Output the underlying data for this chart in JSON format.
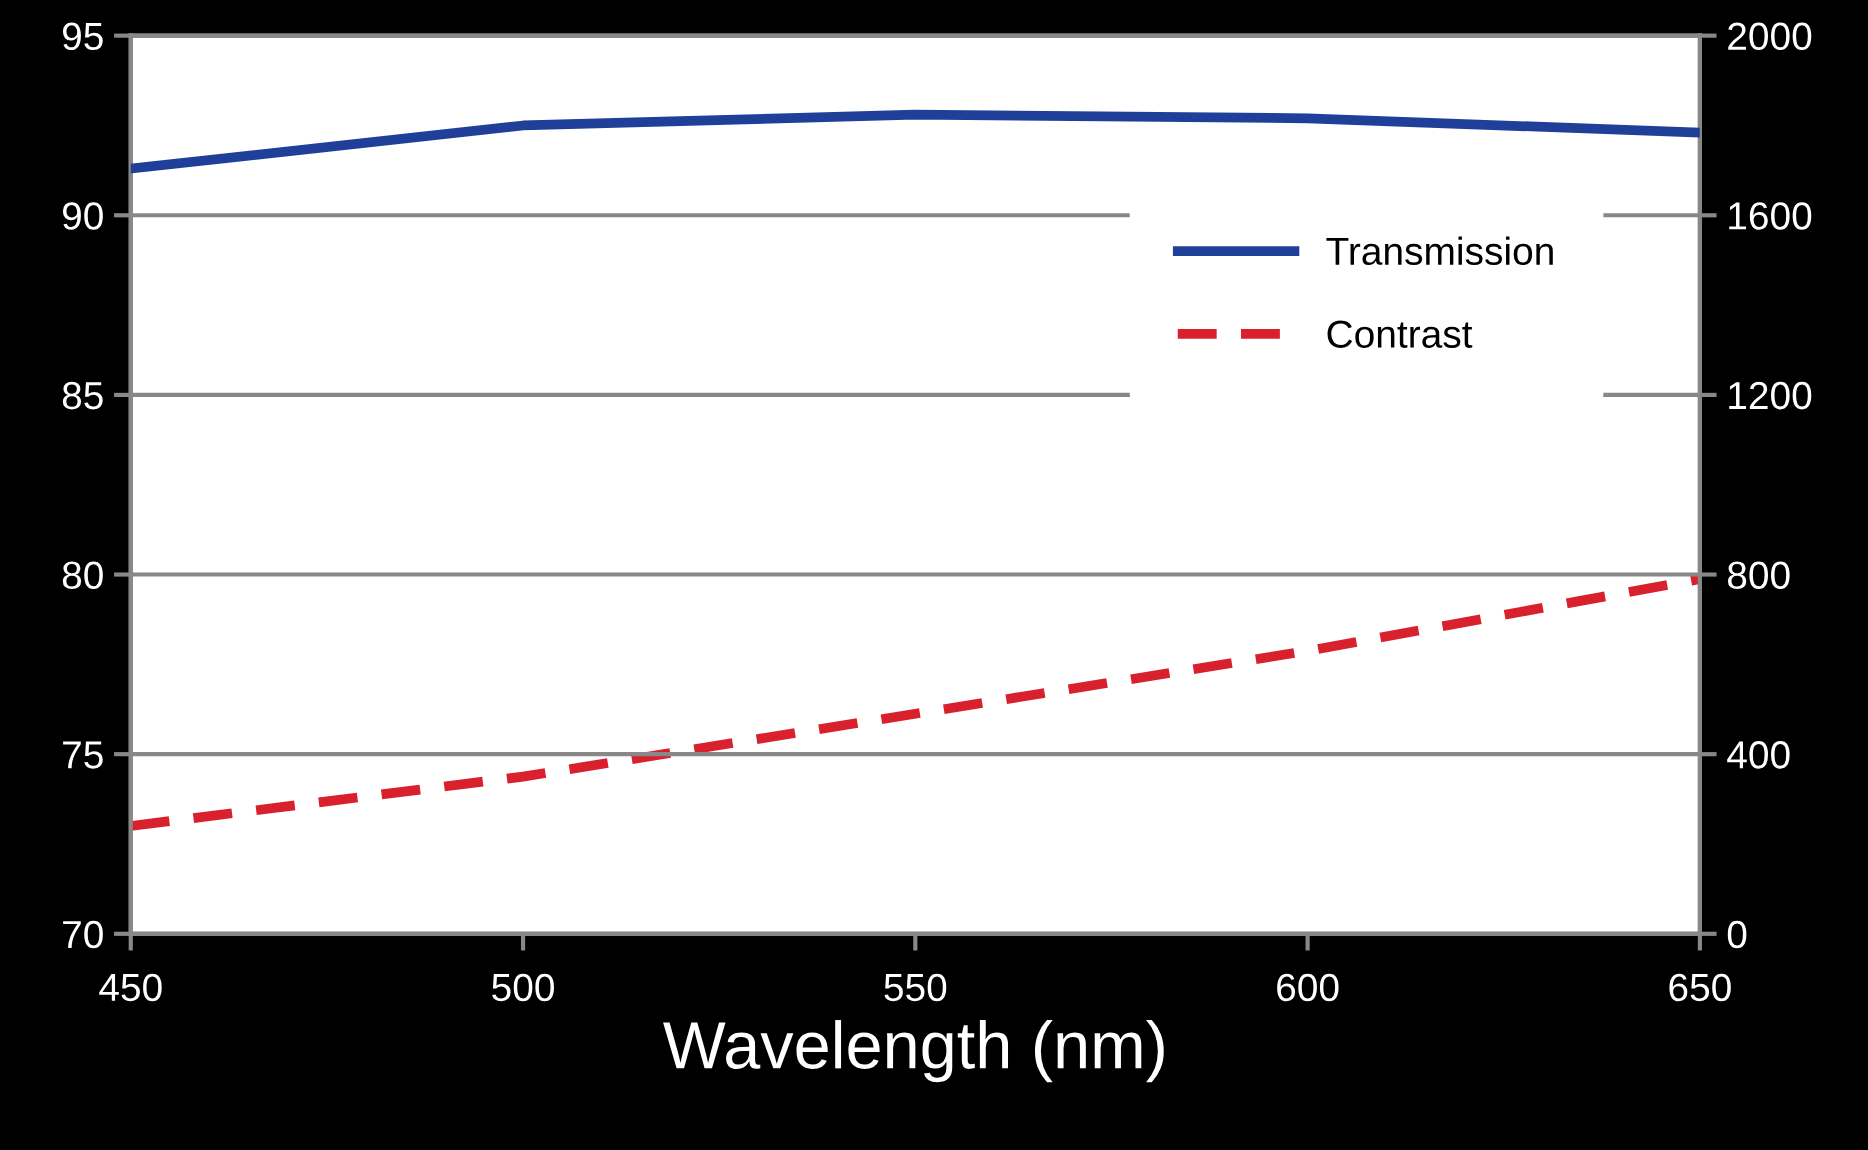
{
  "chart_data": {
    "type": "line",
    "xlabel": "Wavelength (nm)",
    "x": [
      450,
      500,
      550,
      600,
      650
    ],
    "series": [
      {
        "name": "Transmission",
        "color": "#1f3f99",
        "values": [
          91.3,
          92.5,
          92.8,
          92.7,
          92.3
        ],
        "line_style": "solid"
      },
      {
        "name": "Contrast",
        "color": "#d9212e",
        "values": [
          240,
          350,
          490,
          630,
          790
        ],
        "axis": "y2",
        "line_style": "dashed"
      }
    ],
    "xlim": [
      450,
      650
    ],
    "xticks": [
      450,
      500,
      550,
      600,
      650
    ],
    "ylim": [
      70,
      95
    ],
    "yticks": [
      70,
      75,
      80,
      85,
      90,
      95
    ],
    "y2lim": [
      0,
      2000
    ],
    "y2ticks": [
      0,
      400,
      800,
      1200,
      1600,
      2000
    ],
    "grid": "y",
    "legend": "top right",
    "marker": "none"
  }
}
